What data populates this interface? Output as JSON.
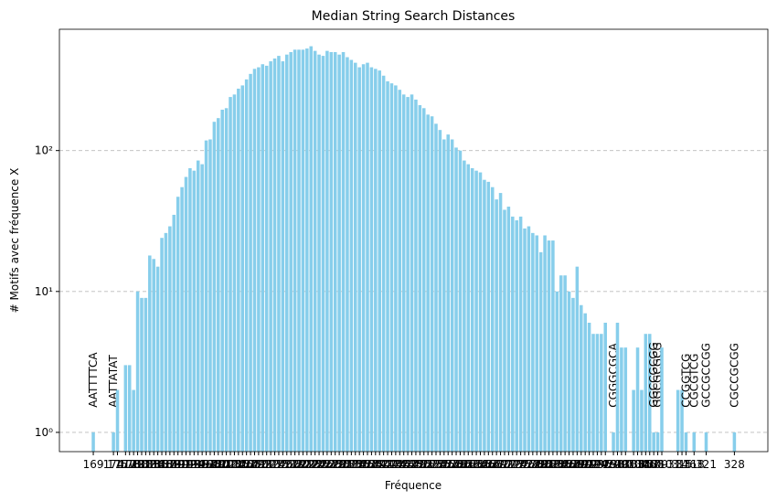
{
  "chart_data": {
    "type": "bar",
    "title": "Median String Search Distances",
    "xlabel": "Fréquence",
    "ylabel": "# Motifs avec fréquence X",
    "color": "#87ceeb",
    "log_y": true,
    "grid": true,
    "xlim": [
      160.6,
      336.3
    ],
    "ylim": [
      0.73,
      726
    ],
    "yticks": [
      {
        "value": 1,
        "label": "10⁰"
      },
      {
        "value": 10,
        "label": "10¹"
      },
      {
        "value": 100,
        "label": "10²"
      }
    ],
    "x": [
      169,
      174,
      175,
      177,
      178,
      179,
      180,
      181,
      182,
      183,
      184,
      185,
      186,
      187,
      188,
      189,
      190,
      191,
      192,
      193,
      194,
      195,
      196,
      197,
      198,
      199,
      200,
      201,
      202,
      203,
      204,
      205,
      206,
      207,
      208,
      209,
      210,
      211,
      212,
      213,
      214,
      215,
      216,
      217,
      218,
      219,
      220,
      221,
      222,
      223,
      224,
      225,
      226,
      227,
      228,
      229,
      230,
      231,
      232,
      233,
      234,
      235,
      236,
      237,
      238,
      239,
      240,
      241,
      242,
      243,
      244,
      245,
      246,
      247,
      248,
      249,
      250,
      251,
      252,
      253,
      254,
      255,
      256,
      257,
      258,
      259,
      260,
      261,
      262,
      263,
      264,
      265,
      266,
      267,
      268,
      269,
      270,
      271,
      272,
      273,
      274,
      275,
      276,
      277,
      278,
      279,
      280,
      281,
      282,
      283,
      284,
      285,
      286,
      287,
      288,
      289,
      290,
      291,
      292,
      293,
      294,
      295,
      296,
      298,
      299,
      300,
      301,
      303,
      304,
      305,
      306,
      307,
      308,
      309,
      310,
      314,
      315,
      316,
      318,
      321,
      328
    ],
    "values": [
      1,
      1,
      2,
      3,
      3,
      2,
      10,
      9,
      9,
      18,
      17,
      15,
      24,
      26,
      29,
      35,
      47,
      55,
      65,
      75,
      72,
      85,
      80,
      118,
      120,
      160,
      170,
      195,
      200,
      240,
      250,
      275,
      290,
      320,
      350,
      380,
      390,
      410,
      400,
      430,
      450,
      470,
      430,
      480,
      500,
      520,
      520,
      520,
      530,
      550,
      510,
      480,
      470,
      510,
      500,
      500,
      480,
      500,
      460,
      440,
      420,
      390,
      410,
      420,
      390,
      380,
      370,
      340,
      310,
      300,
      290,
      270,
      250,
      240,
      250,
      230,
      210,
      200,
      180,
      175,
      155,
      140,
      120,
      130,
      120,
      105,
      100,
      85,
      80,
      75,
      72,
      70,
      62,
      60,
      55,
      45,
      50,
      38,
      40,
      34,
      32,
      34,
      28,
      29,
      26,
      25,
      19,
      25,
      23,
      23,
      10,
      13,
      13,
      10,
      9,
      15,
      8,
      7,
      6,
      5,
      5,
      5,
      6,
      1,
      6,
      4,
      4,
      2,
      4,
      2,
      5,
      5,
      1,
      1,
      4,
      2,
      2,
      1,
      1,
      1,
      1
    ],
    "bar_labels": [
      "AATTTTCA",
      "AATTATAT",
      null,
      null,
      null,
      null,
      null,
      null,
      null,
      null,
      null,
      null,
      null,
      null,
      null,
      null,
      null,
      null,
      null,
      null,
      null,
      null,
      null,
      null,
      null,
      null,
      null,
      null,
      null,
      null,
      null,
      null,
      null,
      null,
      null,
      null,
      null,
      null,
      null,
      null,
      null,
      null,
      null,
      null,
      null,
      null,
      null,
      null,
      null,
      null,
      null,
      null,
      null,
      null,
      null,
      null,
      null,
      null,
      null,
      null,
      null,
      null,
      null,
      null,
      null,
      null,
      null,
      null,
      null,
      null,
      null,
      null,
      null,
      null,
      null,
      null,
      null,
      null,
      null,
      null,
      null,
      null,
      null,
      null,
      null,
      null,
      null,
      null,
      null,
      null,
      null,
      null,
      null,
      null,
      null,
      null,
      null,
      null,
      null,
      null,
      null,
      null,
      null,
      null,
      null,
      null,
      null,
      null,
      null,
      null,
      null,
      null,
      null,
      null,
      null,
      null,
      null,
      null,
      null,
      null,
      null,
      null,
      null,
      "CGGGCGCA",
      null,
      null,
      null,
      null,
      null,
      null,
      null,
      null,
      "GGCCGCGG",
      "GGCGCGCG",
      null,
      null,
      null,
      "CCGGTCG",
      "CGCGTCG",
      "GCCGCCGG",
      "CGCCGCGG"
    ]
  }
}
